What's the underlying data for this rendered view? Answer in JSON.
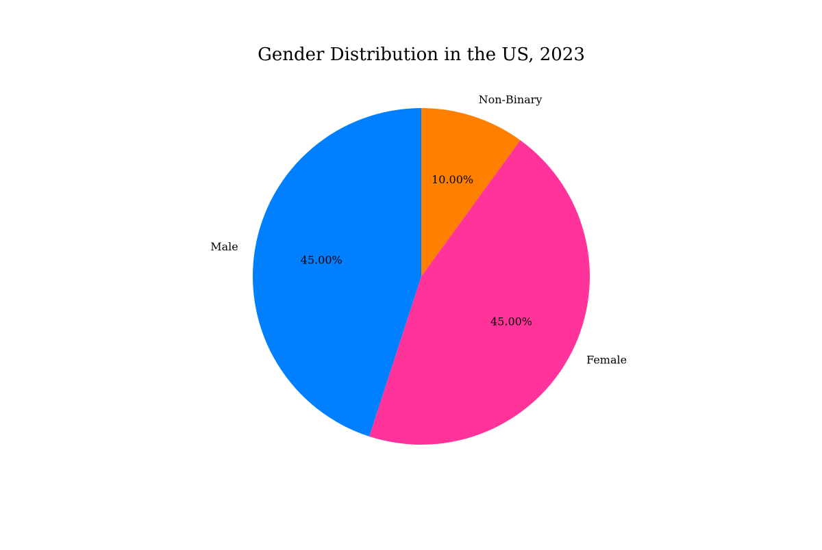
{
  "chart_data": {
    "type": "pie",
    "title": "Gender Distribution in the US, 2023",
    "categories": [
      "Non-Binary",
      "Female",
      "Male"
    ],
    "values": [
      10,
      45,
      45
    ],
    "value_labels": [
      "10.00%",
      "45.00%",
      "45.00%"
    ],
    "colors": [
      "#ff7f00",
      "#ff3399",
      "#007fff"
    ],
    "start_angle_deg": 90,
    "direction": "clockwise",
    "legend": "none"
  }
}
